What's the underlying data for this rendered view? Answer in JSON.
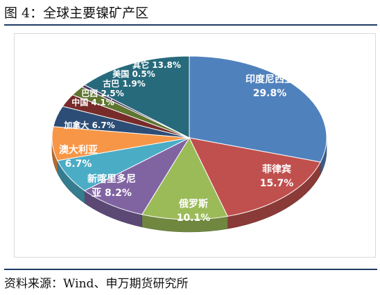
{
  "figure_title": "图 4：全球主要镍矿产区",
  "source_note": "资料来源：Wind、申万期货研究所",
  "chart_data": {
    "type": "pie",
    "title": "",
    "slices": [
      {
        "label": "印度尼西亚",
        "value": 29.8,
        "value_text": "29.8%",
        "color": "#4f81bd"
      },
      {
        "label": "菲律宾",
        "value": 15.7,
        "value_text": "15.7%",
        "color": "#c0504d"
      },
      {
        "label": "俄罗斯",
        "value": 10.1,
        "value_text": "10.1%",
        "color": "#9bbb59"
      },
      {
        "label": "新喀里多尼亚",
        "value": 8.2,
        "value_text": "8.2%",
        "color": "#8064a2"
      },
      {
        "label": "澳大利亚",
        "value": 6.7,
        "value_text": "6.7%",
        "color": "#4bacc6"
      },
      {
        "label": "加拿大",
        "value": 6.7,
        "value_text": "6.7%",
        "color": "#f79646"
      },
      {
        "label": "中国",
        "value": 4.1,
        "value_text": "4.1%",
        "color": "#2c4d75"
      },
      {
        "label": "巴西",
        "value": 2.5,
        "value_text": "2.5%",
        "color": "#772c2a"
      },
      {
        "label": "古巴",
        "value": 1.9,
        "value_text": "1.9%",
        "color": "#5f7530"
      },
      {
        "label": "美国",
        "value": 0.5,
        "value_text": "0.5%",
        "color": "#4d3b62"
      },
      {
        "label": "其它",
        "value": 13.8,
        "value_text": "13.8%",
        "color": "#276a7c"
      }
    ]
  }
}
